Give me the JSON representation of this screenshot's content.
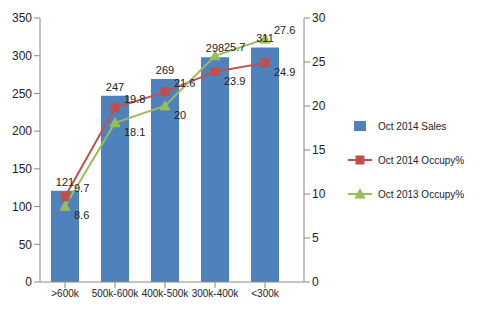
{
  "chart_data": {
    "type": "bar",
    "categories": [
      ">600k",
      "500k-600k",
      "400k-500k",
      "300k-400k",
      "<300k"
    ],
    "series": [
      {
        "name": "Oct 2014 Sales",
        "type": "bar",
        "color": "#4f81bd",
        "values": [
          121,
          247,
          269,
          298,
          311
        ]
      },
      {
        "name": "Oct 2014 Occupy%",
        "type": "line",
        "axis": "y2",
        "color": "#c0504d",
        "marker": "square",
        "values": [
          9.7,
          19.8,
          21.6,
          23.9,
          24.9
        ]
      },
      {
        "name": "Oct 2013 Occupy%",
        "type": "line",
        "axis": "y2",
        "color": "#9bbb59",
        "marker": "triangle",
        "values": [
          8.6,
          18.1,
          20,
          25.7,
          27.6
        ]
      }
    ],
    "ylim": [
      0,
      350
    ],
    "yticks": [
      0,
      50,
      100,
      150,
      200,
      250,
      300,
      350
    ],
    "y2lim": [
      0,
      30
    ],
    "y2ticks": [
      0,
      5,
      10,
      15,
      20,
      25,
      30
    ],
    "grid": false,
    "legend": "right",
    "data_labels": true
  }
}
